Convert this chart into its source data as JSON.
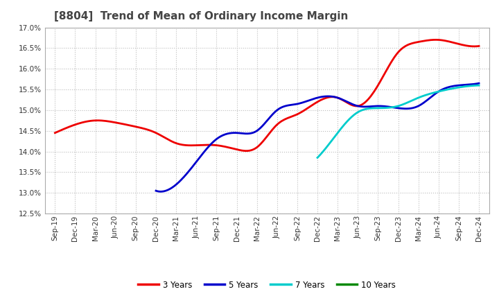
{
  "title": "[8804]  Trend of Mean of Ordinary Income Margin",
  "title_fontsize": 11,
  "title_color": "#444444",
  "background_color": "#ffffff",
  "grid_color": "#bbbbbb",
  "ylim": [
    0.125,
    0.17
  ],
  "yticks": [
    0.125,
    0.13,
    0.135,
    0.14,
    0.145,
    0.15,
    0.155,
    0.16,
    0.165,
    0.17
  ],
  "xtick_labels": [
    "Sep-19",
    "Dec-19",
    "Mar-20",
    "Jun-20",
    "Sep-20",
    "Dec-20",
    "Mar-21",
    "Jun-21",
    "Sep-21",
    "Dec-21",
    "Mar-22",
    "Jun-22",
    "Sep-22",
    "Dec-22",
    "Mar-23",
    "Jun-23",
    "Sep-23",
    "Dec-23",
    "Mar-24",
    "Jun-24",
    "Sep-24",
    "Dec-24"
  ],
  "series": {
    "3 Years": {
      "color": "#ee0000",
      "x": [
        0,
        1,
        2,
        3,
        4,
        5,
        6,
        7,
        8,
        9,
        10,
        11,
        12,
        13,
        14,
        15,
        16,
        17,
        18,
        19,
        20,
        21
      ],
      "y": [
        0.1445,
        0.1465,
        0.1475,
        0.147,
        0.146,
        0.1445,
        0.142,
        0.1415,
        0.1415,
        0.1405,
        0.141,
        0.1465,
        0.149,
        0.152,
        0.153,
        0.151,
        0.156,
        0.164,
        0.1665,
        0.167,
        0.166,
        0.1655
      ]
    },
    "5 Years": {
      "color": "#0000cc",
      "x": [
        5,
        6,
        7,
        8,
        9,
        10,
        11,
        12,
        13,
        14,
        15,
        16,
        17,
        18,
        19,
        20,
        21
      ],
      "y": [
        0.1305,
        0.132,
        0.1375,
        0.143,
        0.1445,
        0.145,
        0.15,
        0.1515,
        0.153,
        0.153,
        0.151,
        0.151,
        0.1505,
        0.151,
        0.1545,
        0.156,
        0.1565
      ]
    },
    "7 Years": {
      "color": "#00cccc",
      "x": [
        13,
        14,
        15,
        16,
        17,
        18,
        19,
        20,
        21
      ],
      "y": [
        0.1385,
        0.1445,
        0.1495,
        0.1505,
        0.151,
        0.153,
        0.1545,
        0.1555,
        0.156
      ]
    },
    "10 Years": {
      "color": "#008800",
      "x": [],
      "y": []
    }
  },
  "legend_entries": [
    "3 Years",
    "5 Years",
    "7 Years",
    "10 Years"
  ],
  "legend_colors": [
    "#ee0000",
    "#0000cc",
    "#00cccc",
    "#008800"
  ]
}
